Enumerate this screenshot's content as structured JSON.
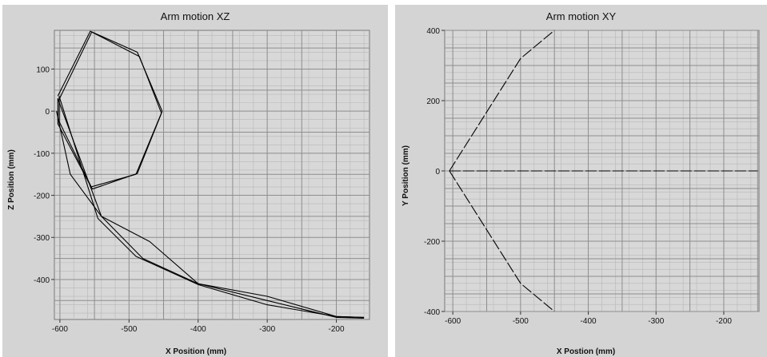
{
  "chart_data": [
    {
      "type": "line",
      "title": "Arm motion XZ",
      "xlabel": "X Position (mm)",
      "ylabel": "Z Position (mm)",
      "xlim": [
        -608,
        -152
      ],
      "ylim": [
        -495,
        192
      ],
      "xticks": [
        -600,
        -500,
        -400,
        -300,
        -200
      ],
      "xtick_labels": [
        "-600",
        "-500",
        "-400",
        "-300",
        "-200"
      ],
      "yticks": [
        100,
        0,
        -100,
        -200,
        -300,
        -400
      ],
      "ytick_labels": [
        "100",
        "0",
        "-100",
        "-200",
        "-300",
        "-400"
      ],
      "grid": true,
      "line_color": "#000000",
      "series": [
        {
          "x": [
            -452,
            -490,
            -555,
            -603,
            -603,
            -540,
            -480,
            -400,
            -300,
            -200,
            -160
          ],
          "y": [
            0,
            -150,
            -180,
            -30,
            30,
            -250,
            -350,
            -410,
            -450,
            -490,
            -492
          ]
        },
        {
          "x": [
            -453,
            -488,
            -553,
            -601,
            -601,
            -545,
            -490,
            -400,
            -300,
            -200,
            -160
          ],
          "y": [
            -5,
            -148,
            -185,
            -25,
            35,
            -255,
            -345,
            -412,
            -460,
            -488,
            -490
          ]
        },
        {
          "x": [
            -605,
            -585,
            -540,
            -470,
            -400,
            -300,
            -200,
            -160
          ],
          "y": [
            0,
            -150,
            -250,
            -310,
            -410,
            -440,
            -488,
            -490
          ]
        },
        {
          "x": [
            -603,
            -556,
            -488,
            -452
          ],
          "y": [
            36,
            190,
            140,
            0
          ]
        },
        {
          "x": [
            -601,
            -554,
            -485,
            -453
          ],
          "y": [
            28,
            188,
            130,
            -5
          ]
        }
      ]
    },
    {
      "type": "line",
      "title": "Arm motion XY",
      "xlabel": "X Postion (mm)",
      "ylabel": "Y Position (mm)",
      "xlim": [
        -612,
        -148
      ],
      "ylim": [
        -400,
        400
      ],
      "xticks": [
        -600,
        -500,
        -400,
        -300,
        -200
      ],
      "xtick_labels": [
        "-600",
        "-500",
        "-400",
        "-300",
        "-200"
      ],
      "yticks": [
        400,
        200,
        0,
        -200,
        -400
      ],
      "ytick_labels": [
        "400",
        "200",
        "0",
        "-200",
        "-400"
      ],
      "grid": true,
      "line_color": "#000000",
      "series": [
        {
          "x": [
            -605,
            -500,
            -450
          ],
          "y": [
            0,
            320,
            400
          ],
          "dashed": true
        },
        {
          "x": [
            -605,
            -500,
            -450
          ],
          "y": [
            0,
            -320,
            -400
          ],
          "dashed": true
        },
        {
          "x": [
            -605,
            -150
          ],
          "y": [
            0,
            0
          ],
          "dashed": true
        }
      ]
    }
  ]
}
